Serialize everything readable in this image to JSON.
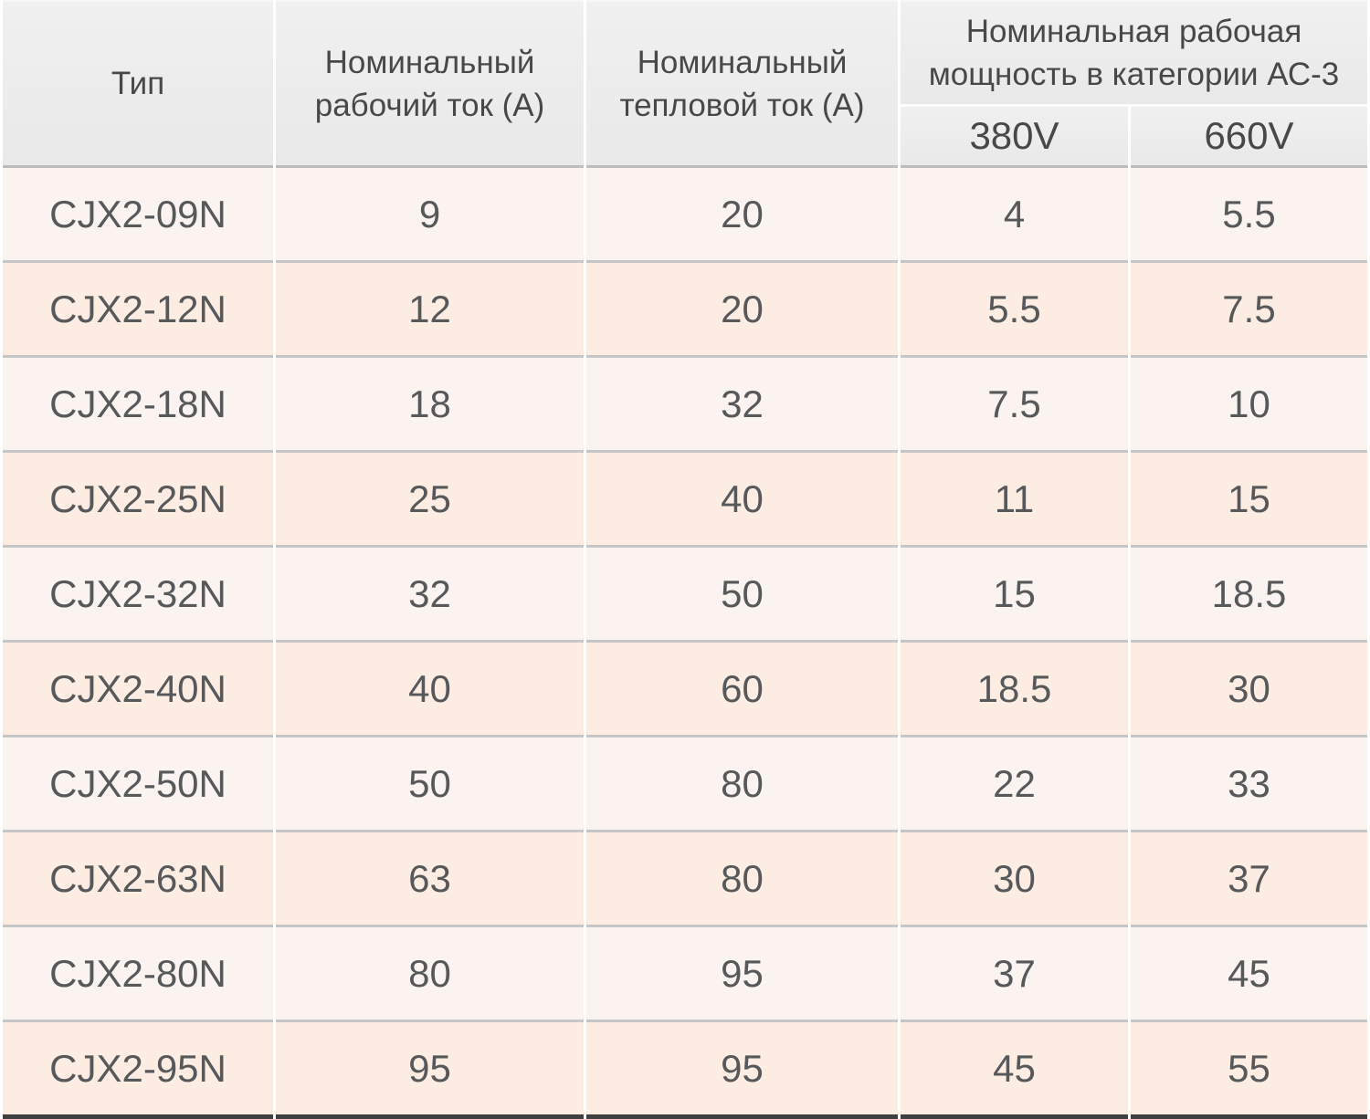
{
  "table": {
    "headers": {
      "type": "Тип",
      "rated_current": "Номинальный\nрабочий ток (А)",
      "thermal_current": "Номинальный\nтепловой ток (А)",
      "power_group": "Номинальная рабочая\nмощность в категории АС-3",
      "power_380": "380V",
      "power_660": "660V"
    },
    "rows": [
      {
        "type": "CJX2-09N",
        "rated": "9",
        "thermal": "20",
        "p380": "4",
        "p660": "5.5"
      },
      {
        "type": "CJX2-12N",
        "rated": "12",
        "thermal": "20",
        "p380": "5.5",
        "p660": "7.5"
      },
      {
        "type": "CJX2-18N",
        "rated": "18",
        "thermal": "32",
        "p380": "7.5",
        "p660": "10"
      },
      {
        "type": "CJX2-25N",
        "rated": "25",
        "thermal": "40",
        "p380": "11",
        "p660": "15"
      },
      {
        "type": "CJX2-32N",
        "rated": "32",
        "thermal": "50",
        "p380": "15",
        "p660": "18.5"
      },
      {
        "type": "CJX2-40N",
        "rated": "40",
        "thermal": "60",
        "p380": "18.5",
        "p660": "30"
      },
      {
        "type": "CJX2-50N",
        "rated": "50",
        "thermal": "80",
        "p380": "22",
        "p660": "33"
      },
      {
        "type": "CJX2-63N",
        "rated": "63",
        "thermal": "80",
        "p380": "30",
        "p660": "37"
      },
      {
        "type": "CJX2-80N",
        "rated": "80",
        "thermal": "95",
        "p380": "37",
        "p660": "45"
      },
      {
        "type": "CJX2-95N",
        "rated": "95",
        "thermal": "95",
        "p380": "45",
        "p660": "55"
      }
    ],
    "colors": {
      "header_bg": "#ebebeb",
      "row_light": "#faf3ef",
      "row_peach": "#fdece2",
      "row_divider": "#c6c6c6",
      "column_gutter": "#ffffff",
      "bottom_border": "#3f3f3f",
      "header_text": "#48484a",
      "body_text": "#57585a"
    }
  }
}
